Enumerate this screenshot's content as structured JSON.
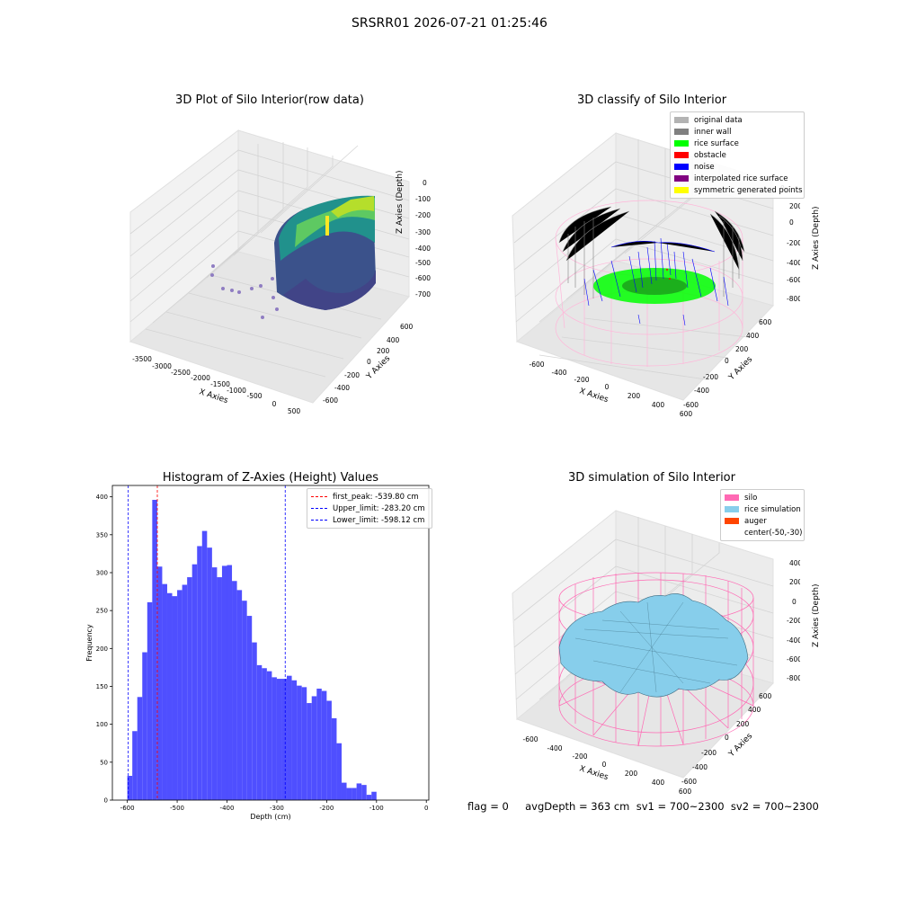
{
  "suptitle": "SRSRR01 2026-07-21 01:25:46",
  "footer": "flag = 0     avgDepth = 363 cm  sv1 = 700~2300  sv2 = 700~2300",
  "colors": {
    "background_pane": "#f2f2f2",
    "grid": "#d7d7d7",
    "original": "#b3b3b3",
    "inner_wall": "#808080",
    "rice": "#00ff00",
    "obstacle": "#ff0000",
    "noise": "#0000ff",
    "interpolated": "#800080",
    "symmetric": "#ffff00",
    "silo": "#ff69b4",
    "rice_sim": "#87ceeb",
    "auger": "#ff4500",
    "hist_bar": "#4b4bff",
    "first_peak_line": "#ff0000",
    "limit_line": "#0000ff"
  },
  "plot1": {
    "title": "3D Plot of Silo Interior(row data)",
    "xlabel": "X Axies",
    "ylabel": "Y Axies",
    "zlabel": "Z Axies (Depth)",
    "xticks": [
      "-3500",
      "-3000",
      "-2500",
      "-2000",
      "-1500",
      "-1000",
      "-500",
      "0",
      "500"
    ],
    "yticks": [
      "-600",
      "-400",
      "-200",
      "0",
      "200",
      "400",
      "600"
    ],
    "zticks": [
      "0",
      "-100",
      "-200",
      "-300",
      "-400",
      "-500",
      "-600",
      "-700"
    ],
    "colormap": "viridis"
  },
  "plot2": {
    "title": "3D classify of Silo Interior",
    "xlabel": "X Axies",
    "ylabel": "Y Axies",
    "zlabel": "Z Axies (Depth)",
    "xticks": [
      "-600",
      "-400",
      "-200",
      "0",
      "200",
      "400",
      "600"
    ],
    "yticks": [
      "-600",
      "-400",
      "-200",
      "0",
      "200",
      "400",
      "600"
    ],
    "zticks": [
      "200",
      "0",
      "-200",
      "-400",
      "-600",
      "-800"
    ],
    "ztick_top_partial": "0",
    "legend": [
      {
        "label": "original data",
        "color": "#b3b3b3"
      },
      {
        "label": "inner wall",
        "color": "#808080"
      },
      {
        "label": "rice surface",
        "color": "#00ff00"
      },
      {
        "label": "obstacle",
        "color": "#ff0000"
      },
      {
        "label": "noise",
        "color": "#0000ff"
      },
      {
        "label": "interpolated rice surface",
        "color": "#800080"
      },
      {
        "label": "symmetric generated points",
        "color": "#ffff00"
      }
    ]
  },
  "plot3": {
    "title": "Histogram of Z-Axies (Height) Values",
    "xlabel": "Depth (cm)",
    "ylabel": "Frequency",
    "legend": [
      {
        "label": "first_peak: -539.80 cm",
        "color": "#ff0000"
      },
      {
        "label": "Upper_limit: -283.20 cm",
        "color": "#0000ff"
      },
      {
        "label": "Lower_limit: -598.12 cm",
        "color": "#0000ff"
      }
    ]
  },
  "plot4": {
    "title": "3D simulation of Silo Interior",
    "xlabel": "X Axies",
    "ylabel": "Y Axies",
    "zlabel": "Z Axies (Depth)",
    "xticks": [
      "-600",
      "-400",
      "-200",
      "0",
      "200",
      "400",
      "600"
    ],
    "yticks": [
      "-600",
      "-400",
      "-200",
      "0",
      "200",
      "400",
      "600"
    ],
    "zticks": [
      "400",
      "200",
      "0",
      "-200",
      "-400",
      "-600",
      "-800"
    ],
    "legend": [
      {
        "label": "silo",
        "color": "#ff69b4"
      },
      {
        "label": "rice simulation",
        "color": "#87ceeb"
      },
      {
        "label": "auger",
        "color": "#ff4500"
      },
      {
        "label": "center(-50,-30)",
        "color": ""
      }
    ]
  },
  "chart_data": [
    {
      "type": "scatter3d",
      "title": "3D Plot of Silo Interior(row data)",
      "xlabel": "X Axies",
      "ylabel": "Y Axies",
      "zlabel": "Z Axies (Depth)",
      "xlim": [
        -3700,
        600
      ],
      "ylim": [
        -650,
        650
      ],
      "zlim": [
        -780,
        0
      ],
      "colormap": "viridis"
    },
    {
      "type": "scatter3d",
      "title": "3D classify of Silo Interior",
      "xlabel": "X Axies",
      "ylabel": "Y Axies",
      "zlabel": "Z Axies (Depth)",
      "xlim": [
        -650,
        650
      ],
      "ylim": [
        -650,
        650
      ],
      "zlim": [
        -900,
        250
      ],
      "series": [
        {
          "name": "original data"
        },
        {
          "name": "inner wall"
        },
        {
          "name": "rice surface"
        },
        {
          "name": "obstacle"
        },
        {
          "name": "noise"
        },
        {
          "name": "interpolated rice surface"
        },
        {
          "name": "symmetric generated points"
        }
      ]
    },
    {
      "type": "bar",
      "title": "Histogram of Z-Axies (Height) Values",
      "xlabel": "Depth (cm)",
      "ylabel": "Frequency",
      "xlim": [
        -630,
        5
      ],
      "ylim": [
        0,
        415
      ],
      "xticks": [
        -600,
        -500,
        -400,
        -300,
        -200,
        -100,
        0
      ],
      "yticks": [
        0,
        50,
        100,
        150,
        200,
        250,
        300,
        350,
        400
      ],
      "bin_start": -600,
      "bin_width": 10,
      "values": [
        32,
        91,
        136,
        195,
        261,
        396,
        308,
        285,
        273,
        269,
        277,
        284,
        294,
        311,
        335,
        355,
        333,
        307,
        294,
        309,
        310,
        289,
        277,
        263,
        243,
        208,
        178,
        174,
        170,
        162,
        160,
        160,
        164,
        158,
        151,
        149,
        128,
        137,
        147,
        144,
        131,
        108,
        75,
        23,
        16,
        16,
        22,
        20,
        7,
        11
      ],
      "vlines": [
        {
          "label": "first_peak: -539.80 cm",
          "x": -539.8,
          "color": "#ff0000"
        },
        {
          "label": "Upper_limit: -283.20 cm",
          "x": -283.2,
          "color": "#0000ff"
        },
        {
          "label": "Lower_limit: -598.12 cm",
          "x": -598.12,
          "color": "#0000ff"
        }
      ]
    },
    {
      "type": "surface3d",
      "title": "3D simulation of Silo Interior",
      "xlabel": "X Axies",
      "ylabel": "Y Axies",
      "zlabel": "Z Axies (Depth)",
      "xlim": [
        -650,
        650
      ],
      "ylim": [
        -650,
        650
      ],
      "zlim": [
        -900,
        450
      ],
      "series": [
        {
          "name": "silo"
        },
        {
          "name": "rice simulation"
        },
        {
          "name": "auger"
        },
        {
          "name": "center(-50,-30)"
        }
      ]
    }
  ]
}
